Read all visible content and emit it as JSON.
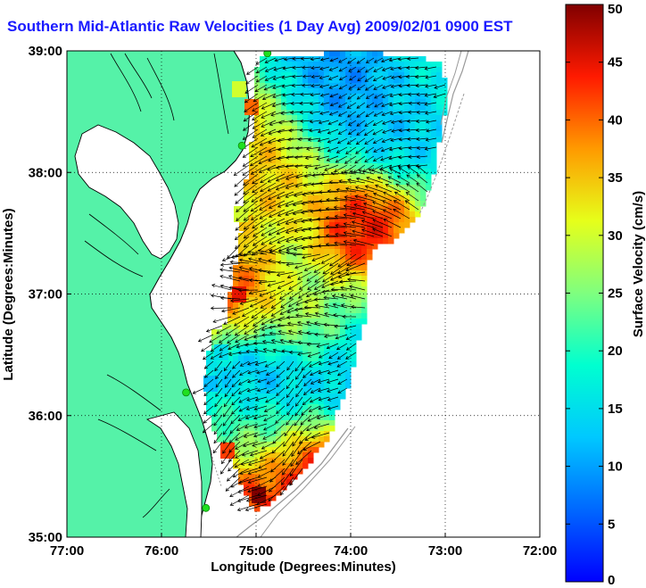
{
  "title": "Southern Mid-Atlantic Raw Velocities (1 Day Avg) 2009/02/01 0900 EST",
  "xaxis": {
    "label": "Longitude (Degrees:Minutes)",
    "ticks": [
      {
        "value": -77,
        "label": "77:00"
      },
      {
        "value": -76,
        "label": "76:00"
      },
      {
        "value": -75,
        "label": "75:00"
      },
      {
        "value": -74,
        "label": "74:00"
      },
      {
        "value": -73,
        "label": "73:00"
      },
      {
        "value": -72,
        "label": "72:00"
      }
    ],
    "range": [
      -77,
      -72
    ]
  },
  "yaxis": {
    "label": "Latitude (Degrees:Minutes)",
    "ticks": [
      {
        "value": 35,
        "label": "35:00"
      },
      {
        "value": 36,
        "label": "36:00"
      },
      {
        "value": 37,
        "label": "37:00"
      },
      {
        "value": 38,
        "label": "38:00"
      },
      {
        "value": 39,
        "label": "39:00"
      }
    ],
    "range": [
      35,
      39
    ]
  },
  "colorbar": {
    "label": "Surface Velocity (cm/s)",
    "range": [
      0,
      50
    ],
    "ticks": [
      {
        "value": 0,
        "label": "0"
      },
      {
        "value": 5,
        "label": "5"
      },
      {
        "value": 10,
        "label": "10"
      },
      {
        "value": 15,
        "label": "15"
      },
      {
        "value": 20,
        "label": "20"
      },
      {
        "value": 25,
        "label": "25"
      },
      {
        "value": 30,
        "label": "30"
      },
      {
        "value": 35,
        "label": "35"
      },
      {
        "value": 40,
        "label": "40"
      },
      {
        "value": 45,
        "label": "45"
      },
      {
        "value": 50,
        "label": "50"
      }
    ]
  },
  "colors": {
    "land": "#55f2a8",
    "coast": "#000000",
    "title": "#1a1aff",
    "station": "#1fe01f",
    "grid": "#000000",
    "isobath": "#999999"
  },
  "grid": true,
  "stations": [
    {
      "lon": -74.88,
      "lat": 38.98
    },
    {
      "lon": -75.15,
      "lat": 38.22
    },
    {
      "lon": -75.74,
      "lat": 36.19
    },
    {
      "lon": -75.53,
      "lat": 35.24
    }
  ],
  "chart_data": {
    "type": "heatmap",
    "title": "Southern Mid-Atlantic Raw Velocities (1 Day Avg) 2009/02/01 0900 EST",
    "xlabel": "Longitude (Degrees:Minutes)",
    "ylabel": "Latitude (Degrees:Minutes)",
    "xlim": [
      -77,
      -72
    ],
    "ylim": [
      35,
      39
    ],
    "colorbar_label": "Surface Velocity (cm/s)",
    "colorbar_range": [
      0,
      50
    ],
    "hotspots": [
      {
        "lon": -73.85,
        "lat": 37.55,
        "speed": 50
      },
      {
        "lon": -74.4,
        "lat": 35.55,
        "speed": 50
      },
      {
        "lon": -74.9,
        "lat": 37.9,
        "speed": 38
      },
      {
        "lon": -74.6,
        "lat": 36.75,
        "speed": 30
      },
      {
        "lon": -75.05,
        "lat": 38.5,
        "speed": 40
      },
      {
        "lon": -75.25,
        "lat": 37.05,
        "speed": 45
      },
      {
        "lon": -75.05,
        "lat": 35.3,
        "speed": 48
      },
      {
        "lon": -75.05,
        "lat": 35.9,
        "speed": 38
      }
    ],
    "coldspots": [
      {
        "lon": -74.1,
        "lat": 38.75,
        "speed": 7
      },
      {
        "lon": -74.6,
        "lat": 38.8,
        "speed": 10
      },
      {
        "lon": -74.9,
        "lat": 36.3,
        "speed": 6
      },
      {
        "lon": -75.05,
        "lat": 36.0,
        "speed": 8
      },
      {
        "lon": -74.0,
        "lat": 36.3,
        "speed": 12
      },
      {
        "lon": -73.5,
        "lat": 38.35,
        "speed": 12
      }
    ],
    "base_speed": 19
  }
}
